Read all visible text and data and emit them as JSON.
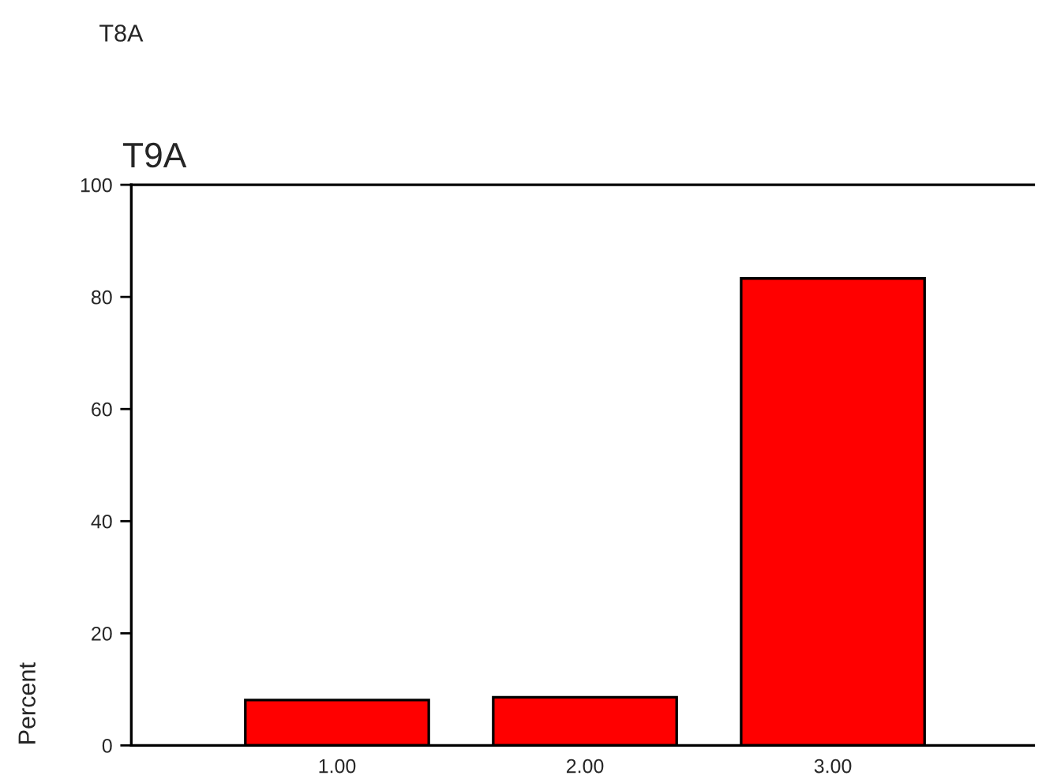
{
  "chart_data": {
    "type": "bar",
    "title": "T9A",
    "ylabel": "Percent",
    "annotations": [
      "T8A"
    ],
    "categories": [
      "1.00",
      "2.00",
      "3.00"
    ],
    "values": [
      8.1,
      8.6,
      83.3
    ],
    "color": "#ff0000",
    "ylim": [
      0,
      100
    ],
    "yticks": [
      0,
      20,
      40,
      60,
      80,
      100
    ],
    "grid": false
  }
}
